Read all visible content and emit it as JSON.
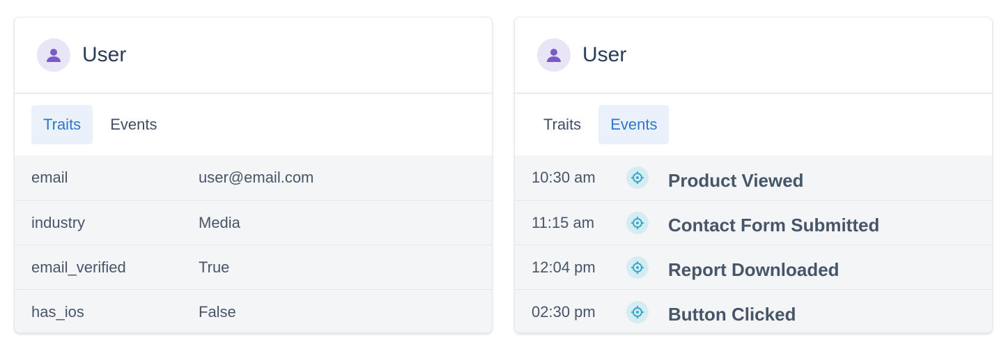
{
  "cards": [
    {
      "title": "User",
      "tabs": [
        "Traits",
        "Events"
      ],
      "active_tab": "Traits",
      "traits": [
        {
          "key": "email",
          "value": "user@email.com"
        },
        {
          "key": "industry",
          "value": "Media"
        },
        {
          "key": "email_verified",
          "value": "True"
        },
        {
          "key": "has_ios",
          "value": "False"
        }
      ]
    },
    {
      "title": "User",
      "tabs": [
        "Traits",
        "Events"
      ],
      "active_tab": "Events",
      "events": [
        {
          "time": "10:30 am",
          "name": "Product Viewed",
          "icon": "target-icon"
        },
        {
          "time": "11:15 am",
          "name": "Contact Form Submitted",
          "icon": "target-icon"
        },
        {
          "time": "12:04 pm",
          "name": "Report Downloaded",
          "icon": "target-icon"
        },
        {
          "time": "02:30 pm",
          "name": "Button Clicked",
          "icon": "target-icon"
        }
      ]
    }
  ],
  "colors": {
    "accent": "#2f75c9",
    "avatar_bg": "#e9e5f7",
    "avatar_icon": "#7a5cc8",
    "event_icon": "#3aa8c8"
  }
}
